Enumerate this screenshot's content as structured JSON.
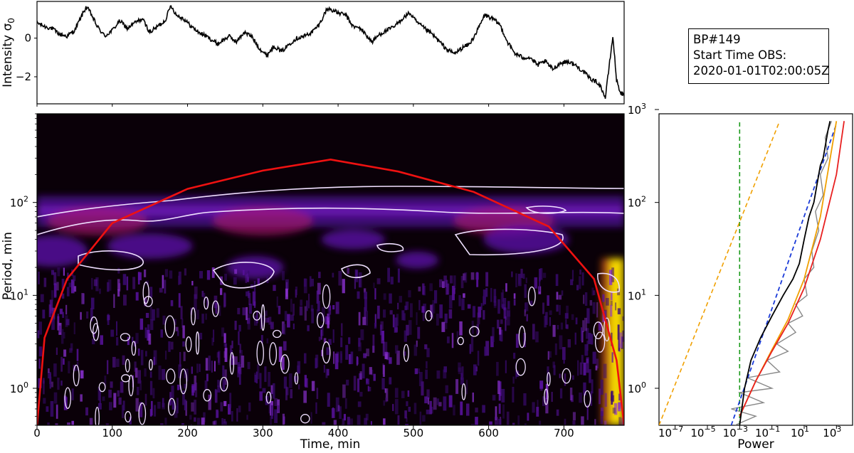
{
  "colors": {
    "wavelet_background": "#0a0008",
    "wavelet_mid": "#5a10a8",
    "wavelet_high": "#ffe000",
    "cone_of_influence": "#ee1111",
    "significance_contour": "#f0e0ff",
    "global_spectrum": "#888888",
    "smoothed_spectrum": "#000000",
    "fit_blue": "#1a3ad8",
    "fit_orange": "#f0a000",
    "fit_red": "#e82020",
    "green_line": "#1a9a1a"
  },
  "info_box": {
    "line1": "BP#149",
    "line2": "Start Time OBS:",
    "line3": "2020-01-01T02:00:05Z"
  },
  "chart_data": [
    {
      "type": "line",
      "panel": "time-series",
      "xlim": [
        0,
        780
      ],
      "ylim": [
        -3.4,
        1.9
      ],
      "ylabel": "Intensity σ0",
      "y_ticks": [
        0,
        -2
      ],
      "y_tick_labels": [
        "0",
        "−2"
      ],
      "series": [
        {
          "x": [
            0,
            10,
            20,
            30,
            40,
            50,
            60,
            65,
            70,
            80,
            90,
            100,
            110,
            120,
            130,
            140,
            150,
            160,
            170,
            178,
            185,
            195,
            205,
            215,
            225,
            240,
            255,
            265,
            275,
            285,
            295,
            305,
            315,
            325,
            335,
            345,
            355,
            365,
            375,
            385,
            390,
            400,
            410,
            420,
            430,
            445,
            455,
            465,
            475,
            485,
            495,
            505,
            515,
            525,
            535,
            545,
            555,
            565,
            575,
            585,
            595,
            605,
            615,
            625,
            635,
            645,
            655,
            665,
            675,
            685,
            695,
            705,
            715,
            725,
            735,
            745,
            750,
            755,
            760,
            765,
            770,
            775,
            780
          ],
          "y": [
            0.8,
            0.6,
            0.5,
            0.2,
            0.1,
            0.4,
            1.2,
            1.6,
            1.4,
            0.6,
            0.1,
            0.4,
            0.9,
            0.5,
            0.8,
            1.0,
            0.3,
            0.6,
            0.9,
            1.7,
            1.2,
            1.0,
            0.6,
            0.3,
            0.1,
            -0.3,
            0.1,
            -0.2,
            0.3,
            0.1,
            -0.5,
            -0.9,
            -0.4,
            -0.7,
            -0.3,
            0.0,
            0.1,
            0.3,
            0.7,
            1.5,
            1.5,
            1.3,
            1.2,
            0.6,
            0.5,
            -0.2,
            0.2,
            0.4,
            0.6,
            1.0,
            1.3,
            0.8,
            0.5,
            0.2,
            -0.2,
            -0.6,
            -0.8,
            -0.5,
            -0.3,
            0.4,
            1.2,
            1.0,
            0.7,
            -0.2,
            -0.8,
            -1.0,
            -1.0,
            -1.4,
            -1.2,
            -1.6,
            -1.3,
            -1.2,
            -1.4,
            -1.7,
            -2.1,
            -2.3,
            -2.6,
            -3.1,
            -1.5,
            0.1,
            -2.2,
            -2.8,
            -3.0
          ]
        }
      ]
    },
    {
      "type": "heatmap",
      "panel": "wavelet-power-spectrum",
      "xlabel": "Time, min",
      "ylabel": "Period, min",
      "xlim": [
        0,
        780
      ],
      "ylim": [
        0.4,
        900
      ],
      "yscale": "log",
      "x_ticks": [
        0,
        100,
        200,
        300,
        400,
        500,
        600,
        700
      ],
      "y_ticks": [
        1,
        10,
        100
      ],
      "y_tick_labels": [
        "10",
        "10",
        "10"
      ],
      "y_tick_exponents": [
        "0",
        "1",
        "2"
      ],
      "power_band": {
        "period_center_min": 80,
        "strongest_time_min": [
          80,
          300,
          620
        ]
      },
      "cone_of_influence": {
        "x": [
          0,
          10,
          40,
          100,
          200,
          300,
          390,
          480,
          580,
          680,
          740,
          770,
          780
        ],
        "y": [
          0.4,
          3.5,
          15,
          60,
          140,
          220,
          290,
          215,
          130,
          55,
          15,
          2,
          0.4
        ]
      }
    },
    {
      "type": "line",
      "panel": "global-wavelet-spectrum",
      "xlabel": "Power",
      "xscale": "log",
      "yscale": "log",
      "xlim": [
        1e-08,
        10000.0
      ],
      "ylim": [
        0.4,
        900
      ],
      "x_ticks": [
        1e-07,
        1e-05,
        0.001,
        0.1,
        10.0,
        1000.0
      ],
      "x_tick_bases": [
        "10",
        "10",
        "10",
        "10",
        "10",
        "10"
      ],
      "x_tick_exponents": [
        "−7",
        "−5",
        "−3",
        "−1",
        "1",
        "3"
      ],
      "y_ticks": [
        1,
        10,
        100,
        1000
      ],
      "y_tick_bases": [
        "10",
        "10",
        "10",
        "10"
      ],
      "y_tick_exponents": [
        "0",
        "1",
        "2",
        "3"
      ],
      "series": [
        {
          "style": "smoothed-black",
          "x": [
            0.001,
            0.002,
            0.005,
            0.02,
            0.1,
            0.5,
            2,
            5,
            10,
            20,
            40,
            60,
            80,
            100,
            150,
            200,
            300,
            400
          ],
          "y": [
            0.4,
            1.0,
            2.0,
            3.5,
            6,
            10,
            15,
            22,
            40,
            70,
            100,
            150,
            200,
            250,
            300,
            400,
            600,
            750
          ]
        },
        {
          "style": "global-gray",
          "x": [
            0.0005,
            0.01,
            0.0003,
            0.03,
            0.001,
            0.1,
            0.003,
            0.3,
            0.05,
            1,
            0.2,
            3,
            1,
            8,
            3,
            15,
            10,
            40,
            30,
            80,
            50,
            150,
            100,
            300,
            200,
            500
          ],
          "y": [
            0.4,
            0.5,
            0.6,
            0.7,
            0.9,
            1.0,
            1.3,
            1.5,
            2,
            2.5,
            3,
            4,
            5,
            6,
            8,
            10,
            15,
            20,
            30,
            50,
            80,
            120,
            200,
            300,
            500,
            750
          ]
        },
        {
          "style": "fit-dashed-blue",
          "x": [
            0.0003,
            1000
          ],
          "y": [
            0.4,
            700
          ]
        },
        {
          "style": "fit-dashed-orange",
          "x": [
            1e-08,
            0.3
          ],
          "y": [
            0.4,
            750
          ]
        },
        {
          "style": "fit-red",
          "x": [
            0.001,
            0.01,
            0.1,
            1,
            10,
            100,
            1000,
            3000
          ],
          "y": [
            0.5,
            1.2,
            2.5,
            5,
            12,
            40,
            200,
            750
          ]
        },
        {
          "style": "fit-orange",
          "x": [
            0.001,
            0.01,
            0.1,
            1,
            10,
            100,
            1000
          ],
          "y": [
            0.5,
            1.2,
            2.6,
            5.5,
            15,
            70,
            750
          ]
        },
        {
          "style": "vertical-dashed-green",
          "x": [
            0.001,
            0.001
          ],
          "y": [
            0.4,
            750
          ]
        }
      ]
    }
  ]
}
